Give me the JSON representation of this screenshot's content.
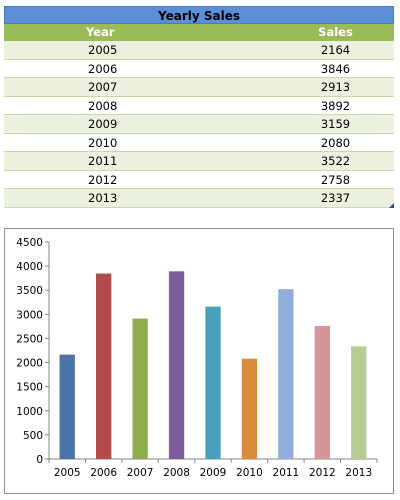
{
  "table": {
    "title": "Yearly Sales",
    "headers": [
      "Year",
      "Sales"
    ],
    "rows": [
      {
        "year": "2005",
        "sales": "2164"
      },
      {
        "year": "2006",
        "sales": "3846"
      },
      {
        "year": "2007",
        "sales": "2913"
      },
      {
        "year": "2008",
        "sales": "3892"
      },
      {
        "year": "2009",
        "sales": "3159"
      },
      {
        "year": "2010",
        "sales": "2080"
      },
      {
        "year": "2011",
        "sales": "3522"
      },
      {
        "year": "2012",
        "sales": "2758"
      },
      {
        "year": "2013",
        "sales": "2337"
      }
    ]
  },
  "colors": {
    "title_bar": "#5b8fd8",
    "header": "#9bbb59",
    "band": "#ebf1de"
  },
  "chart_data": {
    "type": "bar",
    "categories": [
      "2005",
      "2006",
      "2007",
      "2008",
      "2009",
      "2010",
      "2011",
      "2012",
      "2013"
    ],
    "values": [
      2164,
      3846,
      2913,
      3892,
      3159,
      2080,
      3522,
      2758,
      2337
    ],
    "bar_colors": [
      "#4a73a8",
      "#b04a4c",
      "#8fac4f",
      "#7a5d9a",
      "#47a1b8",
      "#dc8a3d",
      "#93addb",
      "#d69697",
      "#b5cd92"
    ],
    "title": "",
    "xlabel": "",
    "ylabel": "",
    "ylim": [
      0,
      4500
    ],
    "yticks": [
      "0",
      "500",
      "1000",
      "1500",
      "2000",
      "2500",
      "3000",
      "3500",
      "4000",
      "4500"
    ],
    "grid": false,
    "legend": "none"
  }
}
